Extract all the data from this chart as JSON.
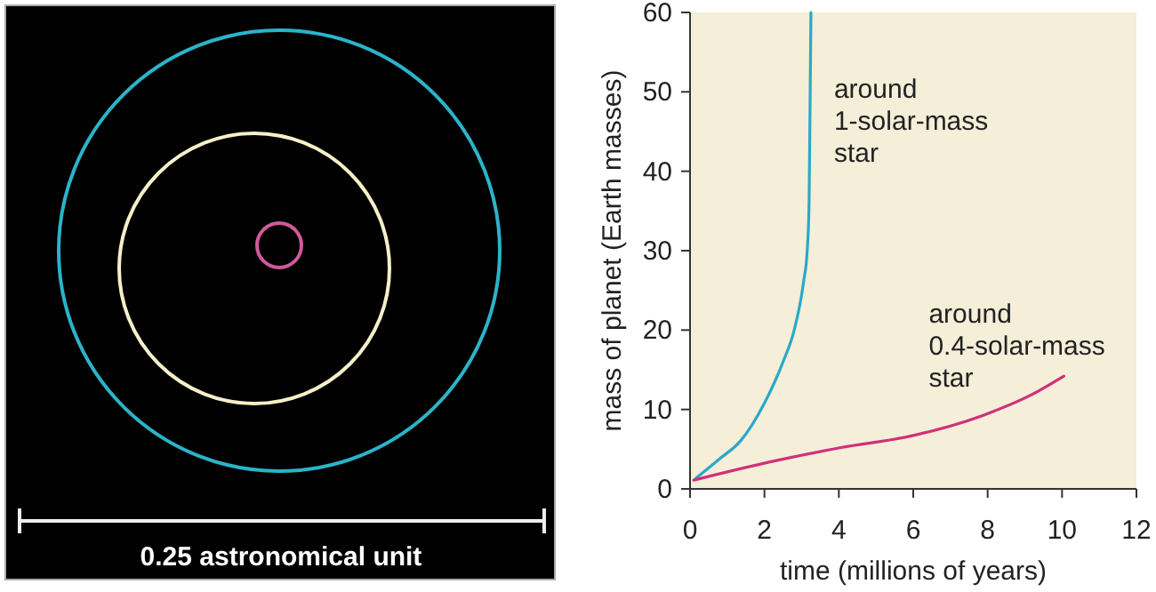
{
  "chart_data": {
    "type": "line",
    "xlabel": "time (millions of years)",
    "ylabel": "mass of planet (Earth masses)",
    "xlim": [
      0,
      12
    ],
    "ylim": [
      0,
      60
    ],
    "xticks": [
      0,
      2,
      4,
      6,
      8,
      10,
      12
    ],
    "yticks": [
      0,
      10,
      20,
      30,
      40,
      50,
      60
    ],
    "grid": false,
    "series": [
      {
        "name": "around 1-solar-mass star",
        "color": "#2aa9c9",
        "x": [
          0.15,
          0.8,
          1.35,
          2.0,
          2.5,
          2.8,
          3.05,
          3.15,
          3.2,
          3.22,
          3.25
        ],
        "values": [
          1.3,
          3.8,
          6,
          10.8,
          16,
          20,
          26,
          30,
          36,
          45,
          60
        ]
      },
      {
        "name": "around 0.4-solar-mass star",
        "color": "#d0307a",
        "x": [
          0.1,
          2.15,
          4.06,
          5.98,
          7.9,
          9.2,
          10.05
        ],
        "values": [
          1.1,
          3.4,
          5.2,
          6.7,
          9.3,
          11.9,
          14.2
        ]
      }
    ],
    "annotations": [
      "0.25 astronomical unit"
    ]
  }
}
